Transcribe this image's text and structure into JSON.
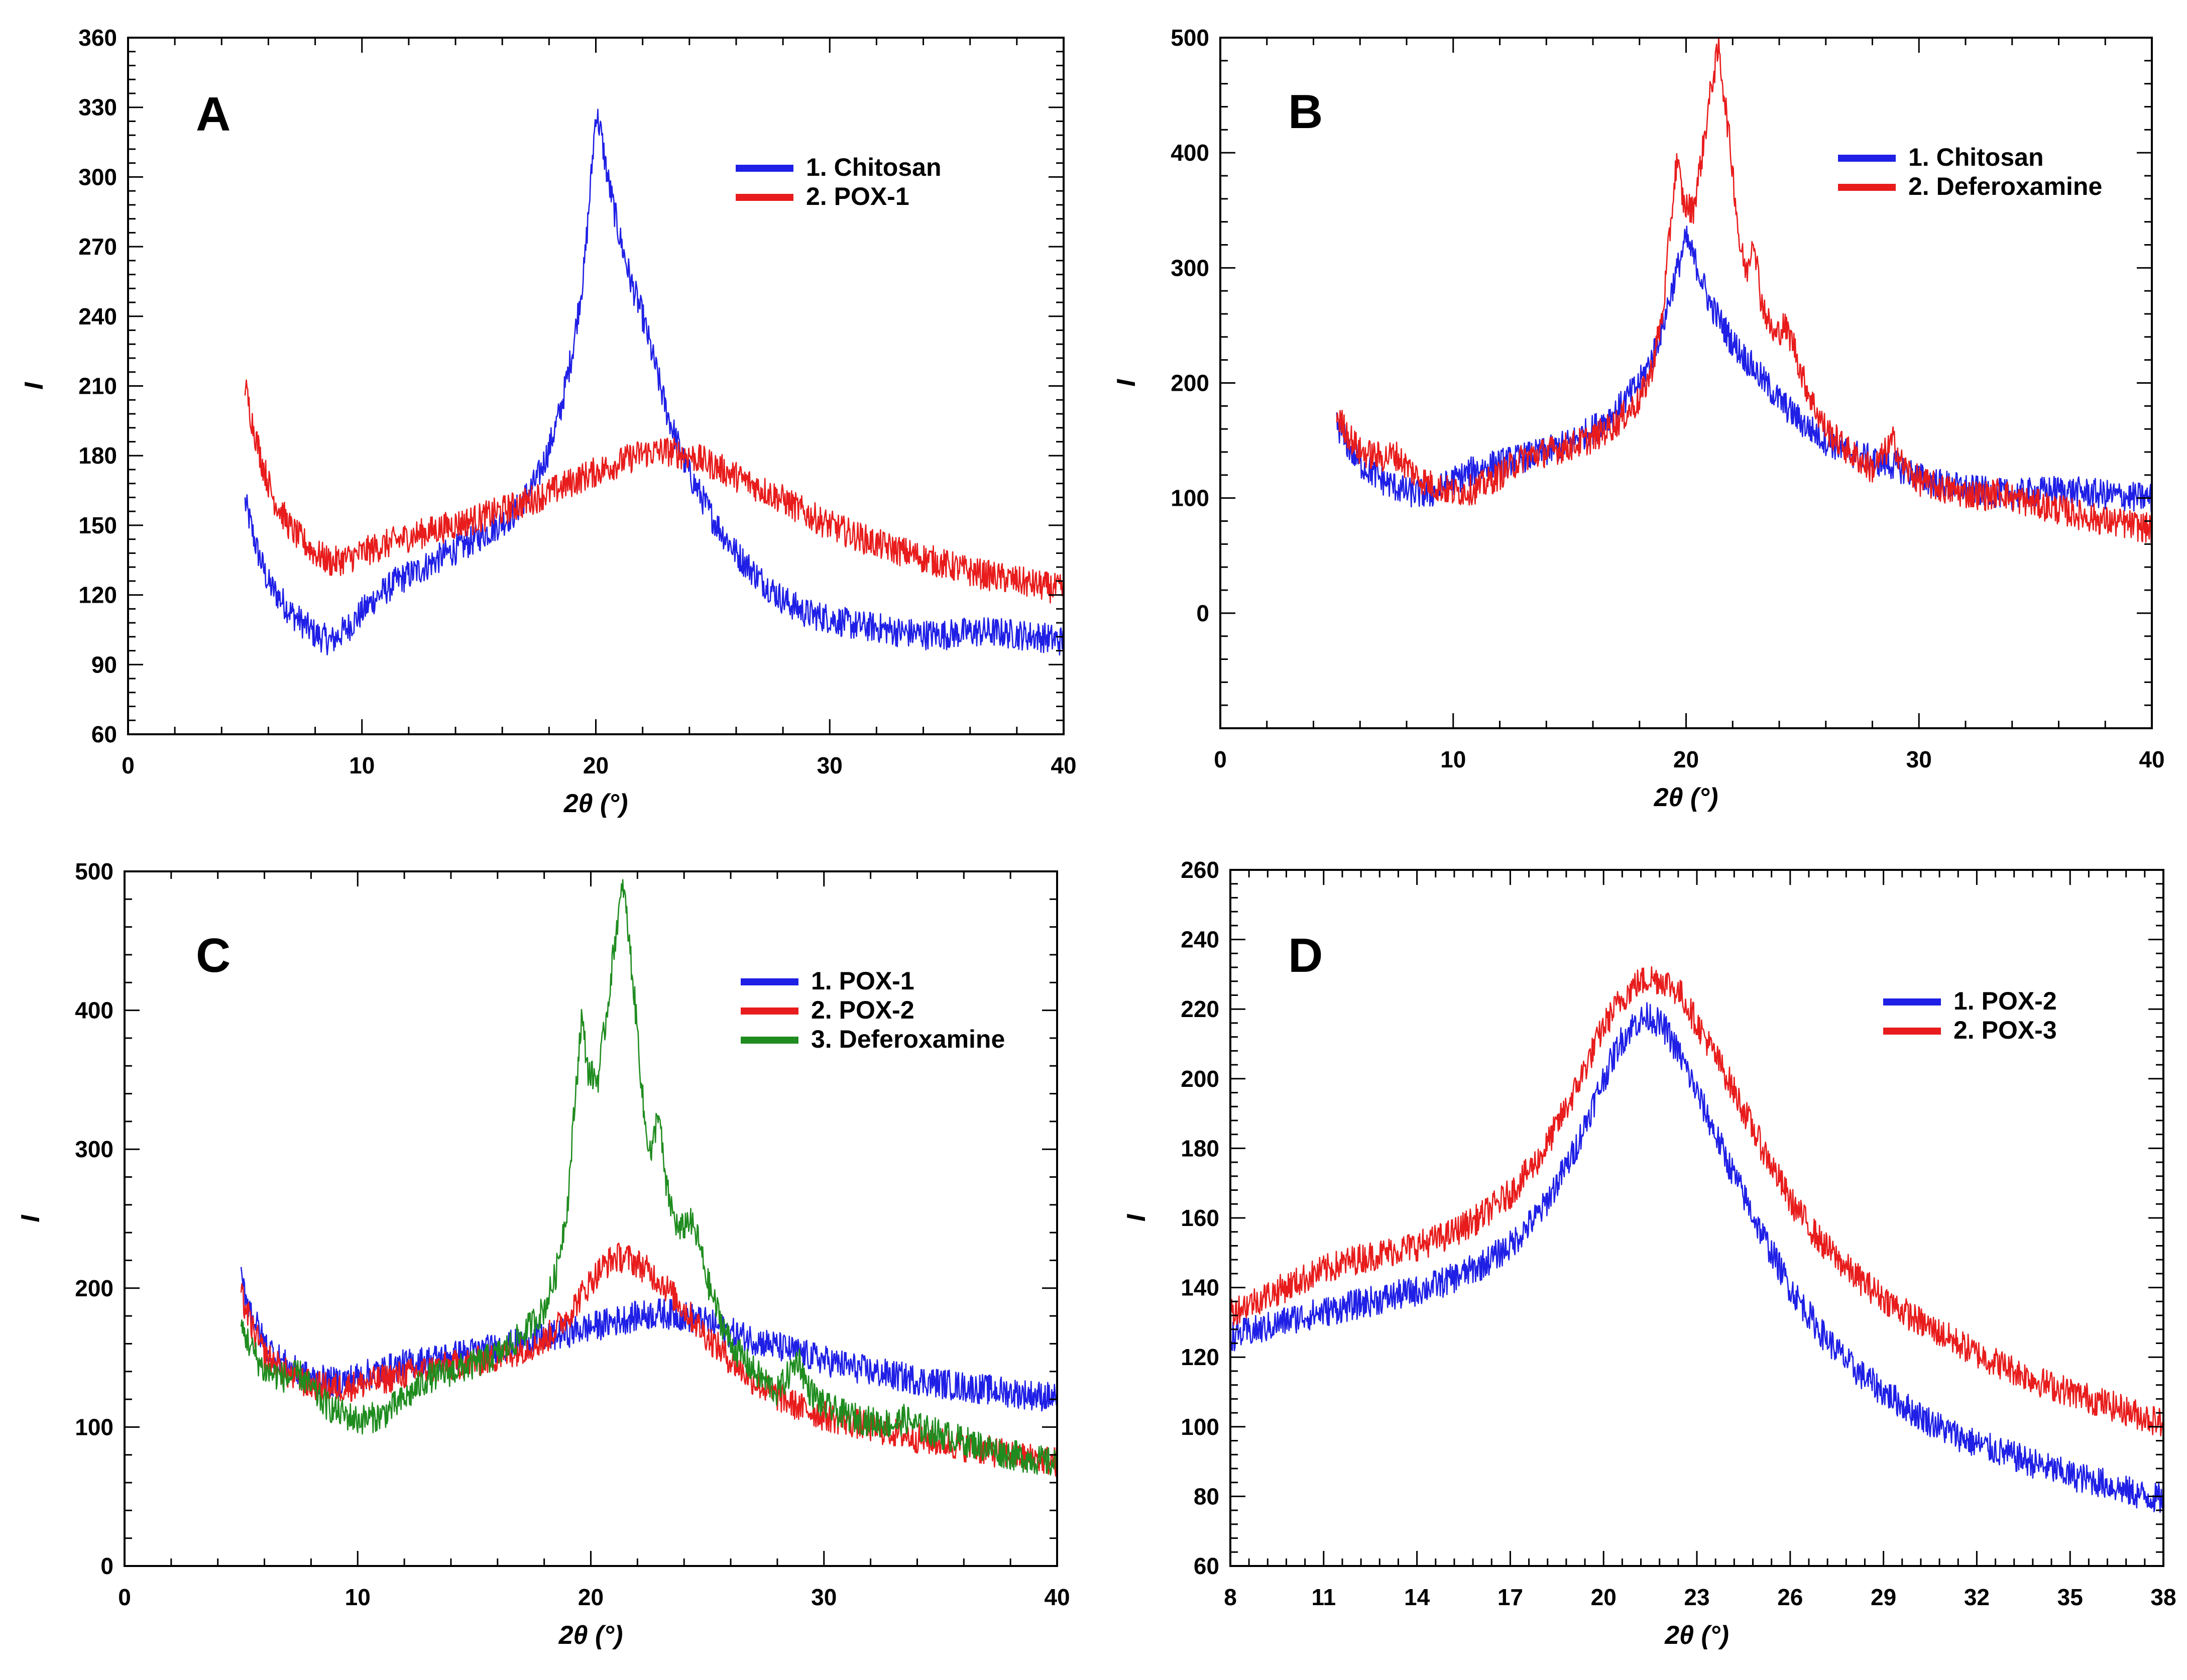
{
  "chart_data": [
    {
      "type": "line",
      "panel_label": "A",
      "xlabel": "2θ (°)",
      "ylabel": "I",
      "xlim": [
        0,
        40
      ],
      "ylim": [
        60,
        360
      ],
      "xticks": [
        "0",
        "10",
        "20",
        "30",
        "40"
      ],
      "yticks": [
        "60",
        "90",
        "120",
        "150",
        "180",
        "210",
        "240",
        "270",
        "300",
        "330",
        "360"
      ],
      "legend_position": "top-right",
      "series": [
        {
          "name": "1. Chitosan",
          "color": "#1f1fe6",
          "x": [
            5,
            5.5,
            6,
            7,
            8,
            8.7,
            9.5,
            10.5,
            11.5,
            12.5,
            13.5,
            14.5,
            15.5,
            16.5,
            17.5,
            18,
            18.5,
            19,
            19.5,
            19.8,
            20,
            20.2,
            20.5,
            21,
            21.5,
            22,
            22.5,
            23,
            23.5,
            24,
            25,
            26,
            27,
            28,
            29,
            30,
            31,
            32,
            33,
            34,
            35,
            36,
            37,
            38,
            39,
            40
          ],
          "y": [
            160,
            140,
            125,
            112,
            103,
            100,
            107,
            118,
            126,
            131,
            137,
            142,
            148,
            155,
            170,
            183,
            200,
            225,
            260,
            300,
            328,
            320,
            300,
            275,
            255,
            240,
            220,
            200,
            185,
            172,
            153,
            138,
            127,
            118,
            112,
            110,
            107,
            106,
            104,
            103,
            103,
            104,
            104,
            103,
            102,
            100
          ]
        },
        {
          "name": "2. POX-1",
          "color": "#e81c1c",
          "x": [
            5,
            5.3,
            5.7,
            6.2,
            7,
            8,
            8.7,
            9.5,
            10.5,
            12,
            13.5,
            15,
            16.5,
            18,
            19.5,
            21,
            22,
            23,
            24,
            25,
            26,
            27,
            28,
            29,
            30,
            31,
            32,
            33,
            34,
            35,
            36,
            37,
            38,
            39,
            40
          ],
          "y": [
            210,
            195,
            178,
            162,
            148,
            138,
            134,
            136,
            140,
            145,
            149,
            153,
            158,
            164,
            171,
            177,
            181,
            182,
            180,
            176,
            171,
            166,
            161,
            155,
            150,
            146,
            142,
            139,
            136,
            133,
            130,
            128,
            126,
            124,
            122
          ]
        }
      ]
    },
    {
      "type": "line",
      "panel_label": "B",
      "xlabel": "2θ (°)",
      "ylabel": "I",
      "xlim": [
        0,
        40
      ],
      "ylim": [
        -100,
        500
      ],
      "xticks": [
        "0",
        "10",
        "20",
        "30",
        "40"
      ],
      "yticks": [
        "0",
        "100",
        "200",
        "300",
        "400",
        "500"
      ],
      "legend_position": "top-right",
      "series": [
        {
          "name": "1. Chitosan",
          "color": "#1f1fe6",
          "x": [
            5,
            5.5,
            6,
            7,
            8,
            9,
            10,
            11,
            12,
            13,
            14,
            15,
            16,
            17,
            18,
            18.5,
            19,
            19.5,
            20,
            20.5,
            21,
            22,
            23,
            24,
            25,
            26,
            27,
            28,
            29,
            30,
            31,
            32,
            33,
            34,
            35,
            36,
            37,
            38,
            39,
            40
          ],
          "y": [
            165,
            145,
            130,
            115,
            105,
            103,
            115,
            125,
            130,
            135,
            140,
            148,
            160,
            175,
            200,
            220,
            250,
            290,
            325,
            300,
            270,
            235,
            210,
            185,
            165,
            150,
            140,
            133,
            128,
            118,
            112,
            108,
            105,
            103,
            105,
            107,
            105,
            103,
            101,
            100
          ]
        },
        {
          "name": "2. Deferoxamine",
          "color": "#e81c1c",
          "x": [
            5,
            5.5,
            6,
            7,
            7.5,
            8,
            8.5,
            9,
            10,
            11,
            12,
            13,
            14,
            15,
            16,
            17,
            18,
            18.5,
            19,
            19.3,
            19.6,
            19.9,
            20.3,
            20.7,
            21.1,
            21.4,
            21.7,
            22,
            22.3,
            22.6,
            22.9,
            23.2,
            23.5,
            23.8,
            24.2,
            24.6,
            25,
            25.5,
            26,
            27,
            28,
            28.5,
            28.9,
            29.3,
            30,
            31,
            32,
            33,
            33.5,
            34,
            35,
            36,
            37,
            38,
            39,
            40
          ],
          "y": [
            172,
            155,
            140,
            135,
            138,
            128,
            118,
            112,
            105,
            108,
            120,
            135,
            140,
            145,
            152,
            165,
            185,
            210,
            260,
            330,
            395,
            355,
            350,
            400,
            460,
            490,
            440,
            385,
            320,
            295,
            330,
            275,
            255,
            240,
            250,
            235,
            205,
            180,
            160,
            140,
            125,
            138,
            150,
            128,
            115,
            108,
            104,
            102,
            106,
            100,
            95,
            90,
            85,
            80,
            77,
            73
          ]
        }
      ]
    },
    {
      "type": "line",
      "panel_label": "C",
      "xlabel": "2θ (°)",
      "ylabel": "I",
      "xlim": [
        0,
        40
      ],
      "ylim": [
        0,
        500
      ],
      "xticks": [
        "0",
        "10",
        "20",
        "30",
        "40"
      ],
      "yticks": [
        "0",
        "100",
        "200",
        "300",
        "400",
        "500"
      ],
      "legend_position": "top-right",
      "series": [
        {
          "name": "1. POX-1",
          "color": "#1f1fe6",
          "x": [
            5,
            5.5,
            6,
            7,
            8,
            9,
            10,
            12,
            14,
            16,
            18,
            20,
            22,
            23,
            24,
            25,
            26,
            28,
            30,
            32,
            34,
            36,
            38,
            40
          ],
          "y": [
            205,
            180,
            160,
            143,
            135,
            132,
            136,
            145,
            151,
            157,
            164,
            172,
            180,
            182,
            180,
            175,
            168,
            158,
            148,
            140,
            134,
            129,
            125,
            121
          ]
        },
        {
          "name": "2. POX-2",
          "color": "#e81c1c",
          "x": [
            5,
            5.5,
            6,
            7,
            8,
            9,
            10,
            12,
            14,
            16,
            18,
            19,
            20,
            20.5,
            21,
            21.5,
            22,
            23,
            24,
            25,
            26,
            27,
            28,
            29,
            30,
            32,
            34,
            36,
            38,
            40
          ],
          "y": [
            195,
            170,
            152,
            138,
            130,
            128,
            130,
            138,
            144,
            150,
            162,
            180,
            205,
            215,
            222,
            222,
            218,
            205,
            185,
            165,
            148,
            133,
            122,
            114,
            108,
            100,
            92,
            86,
            80,
            75
          ]
        },
        {
          "name": "3. Deferoxamine",
          "color": "#1f8c1f",
          "x": [
            5,
            5.5,
            6,
            7,
            7.5,
            8,
            8.5,
            9,
            10,
            11,
            12,
            13,
            14,
            15,
            16,
            17,
            18,
            18.5,
            19,
            19.3,
            19.6,
            19.9,
            20.3,
            20.7,
            21.1,
            21.4,
            21.7,
            22,
            22.3,
            22.6,
            22.9,
            23.2,
            23.5,
            23.8,
            24.2,
            24.6,
            25,
            25.5,
            26,
            27,
            28,
            28.5,
            28.9,
            29.3,
            30,
            31,
            32,
            33,
            33.5,
            34,
            35,
            36,
            37,
            38,
            39,
            40
          ],
          "y": [
            172,
            155,
            140,
            135,
            138,
            128,
            118,
            112,
            105,
            108,
            120,
            135,
            140,
            145,
            152,
            165,
            185,
            210,
            260,
            330,
            395,
            355,
            350,
            400,
            460,
            490,
            440,
            385,
            320,
            295,
            330,
            275,
            255,
            240,
            250,
            235,
            205,
            180,
            160,
            140,
            125,
            138,
            150,
            128,
            115,
            108,
            104,
            102,
            106,
            100,
            95,
            90,
            85,
            80,
            77,
            73
          ]
        }
      ]
    },
    {
      "type": "line",
      "panel_label": "D",
      "xlabel": "2θ (°)",
      "ylabel": "I",
      "xlim": [
        8,
        38
      ],
      "ylim": [
        60,
        260
      ],
      "xticks": [
        "8",
        "11",
        "14",
        "17",
        "20",
        "23",
        "26",
        "29",
        "32",
        "35",
        "38"
      ],
      "yticks": [
        "60",
        "80",
        "100",
        "120",
        "140",
        "160",
        "180",
        "200",
        "220",
        "240",
        "260"
      ],
      "legend_position": "top-right",
      "series": [
        {
          "name": "1. POX-2",
          "color": "#1f1fe6",
          "x": [
            8,
            9,
            10,
            11,
            12,
            13,
            14,
            15,
            16,
            17,
            18,
            19,
            20,
            20.5,
            21,
            21.5,
            22,
            22.5,
            23,
            24,
            25,
            26,
            27,
            28,
            29,
            30,
            31,
            32,
            33,
            34,
            35,
            36,
            37,
            38
          ],
          "y": [
            126,
            128,
            131,
            133,
            135,
            137,
            139,
            142,
            146,
            152,
            162,
            178,
            200,
            210,
            216,
            218,
            214,
            206,
            196,
            176,
            157,
            140,
            127,
            117,
            110,
            104,
            99,
            95,
            92,
            89,
            86,
            84,
            81,
            79
          ]
        },
        {
          "name": "2. POX-3",
          "color": "#e81c1c",
          "x": [
            8,
            9,
            10,
            11,
            12,
            13,
            14,
            15,
            16,
            17,
            18,
            19,
            20,
            20.5,
            21,
            21.5,
            22,
            22.5,
            23,
            24,
            25,
            26,
            27,
            28,
            29,
            30,
            31,
            32,
            33,
            34,
            35,
            36,
            37,
            38
          ],
          "y": [
            133,
            137,
            141,
            145,
            148,
            150,
            152,
            155,
            160,
            167,
            178,
            195,
            215,
            222,
            227,
            229,
            228,
            224,
            216,
            200,
            182,
            165,
            153,
            144,
            137,
            131,
            126,
            121,
            117,
            113,
            110,
            107,
            104,
            101
          ]
        }
      ]
    }
  ]
}
